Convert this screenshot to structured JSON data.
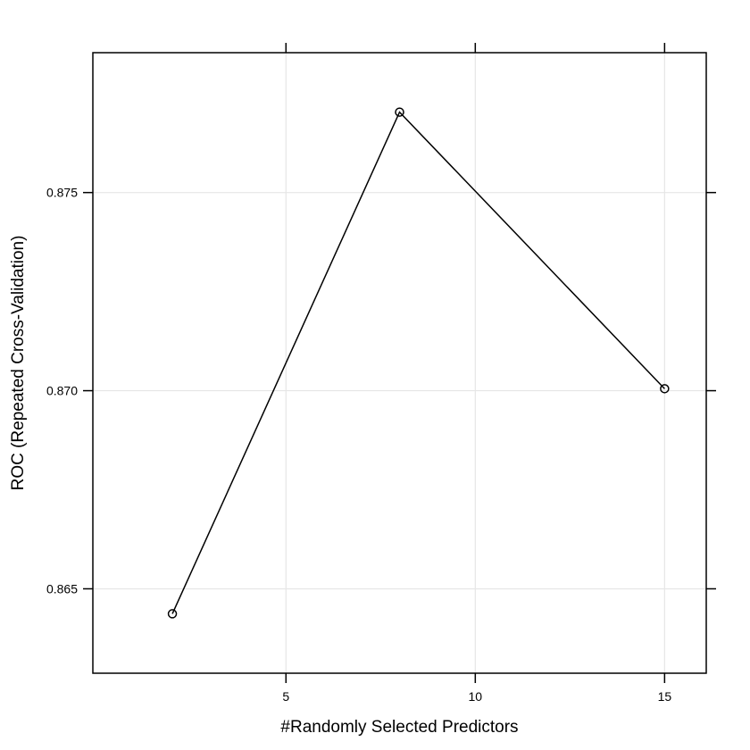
{
  "chart_data": {
    "type": "line",
    "title": "",
    "xlabel": "#Randomly Selected Predictors",
    "ylabel": "ROC (Repeated Cross-Validation)",
    "x": [
      2,
      8,
      15
    ],
    "y": [
      0.86437,
      0.87703,
      0.87005
    ],
    "xlim": [
      -0.1,
      16.1
    ],
    "ylim": [
      0.86287,
      0.87853
    ],
    "xticks": [
      5,
      10,
      15
    ],
    "xtick_labels": [
      "5",
      "10",
      "15"
    ],
    "yticks": [
      0.865,
      0.87,
      0.875
    ],
    "ytick_labels": [
      "0.865",
      "0.870",
      "0.875"
    ],
    "grid": true,
    "marker": "open-circle",
    "line_color": "#000000",
    "grid_color": "#e6e6e6"
  }
}
